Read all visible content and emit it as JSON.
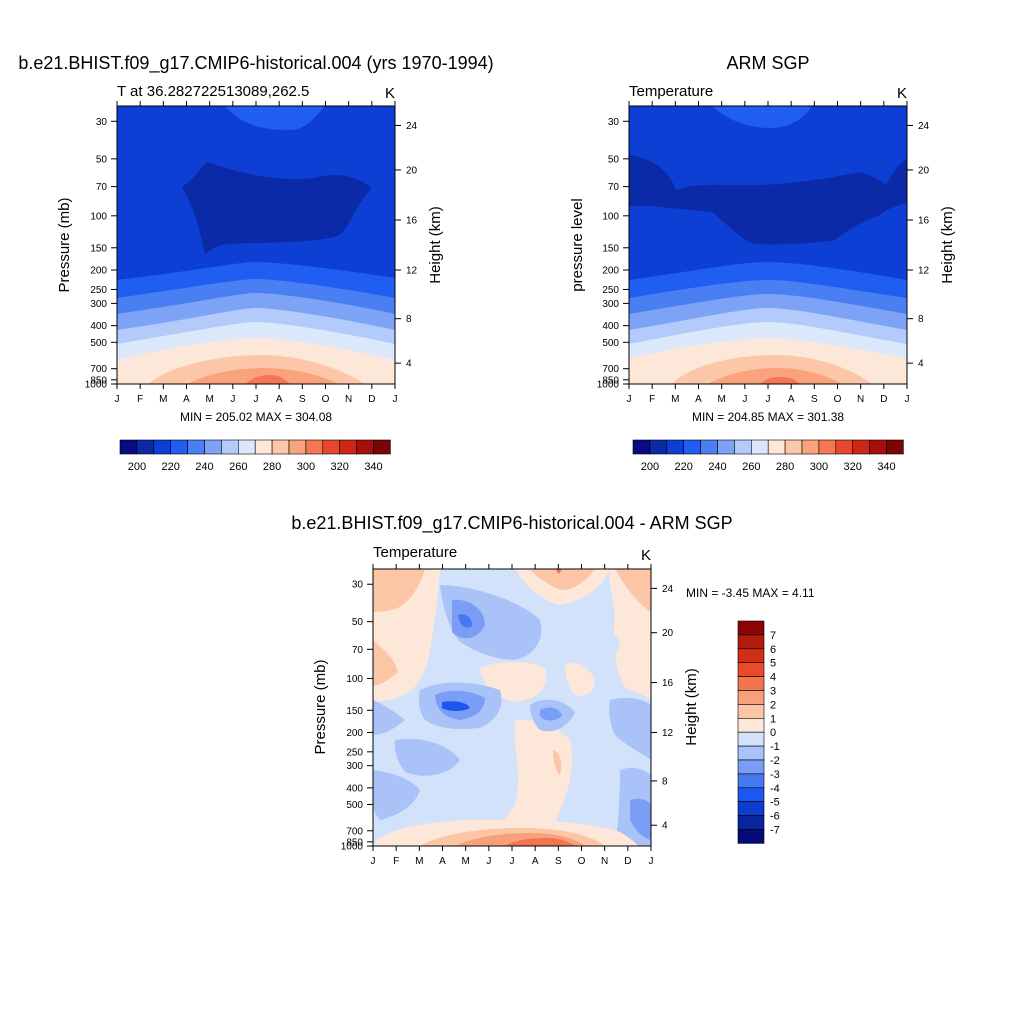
{
  "palette": {
    "temp": [
      "#0b0a80",
      "#0a2aa8",
      "#0e3fd4",
      "#1f5ef0",
      "#4a7ff4",
      "#7da3f7",
      "#b2cbfa",
      "#dbe8fc",
      "#fde7d8",
      "#fcc7a8",
      "#f9a27c",
      "#f47652",
      "#e8472c",
      "#cc2617",
      "#a70f0c",
      "#7d0404"
    ],
    "diff": [
      "#040a78",
      "#0a24a0",
      "#0c3cd0",
      "#1d58ee",
      "#4678f2",
      "#7a9ef6",
      "#a9c2f8",
      "#d3e2fb",
      "#fde7d8",
      "#fcc6a6",
      "#f8a07a",
      "#f27550",
      "#e84a2c",
      "#d12e18",
      "#b21a0c",
      "#8a0404"
    ]
  },
  "months": [
    "J",
    "F",
    "M",
    "A",
    "M",
    "J",
    "J",
    "A",
    "S",
    "O",
    "N",
    "D",
    "J"
  ],
  "pressure_ticks": [
    "30",
    "50",
    "70",
    "100",
    "150",
    "200",
    "250",
    "300",
    "400",
    "500",
    "700",
    "850",
    "1000"
  ],
  "height_ticks": [
    "24",
    "20",
    "16",
    "12",
    "8",
    "4"
  ],
  "panels": {
    "model": {
      "title": "b.e21.BHIST.f09_g17.CMIP6-historical.004 (yrs 1970-1994)",
      "subtitle": "T at 36.282722513089,262.5",
      "units": "K",
      "ylabel_left": "Pressure (mb)",
      "ylabel_right": "Height (km)",
      "minmax": "MIN = 205.02 MAX = 304.08",
      "colorbar_labels": [
        "200",
        "220",
        "240",
        "260",
        "280",
        "300",
        "320",
        "340"
      ]
    },
    "obs": {
      "title": "ARM SGP",
      "subtitle": "Temperature",
      "units": "K",
      "ylabel_left": "pressure level",
      "ylabel_right": "Height (km)",
      "minmax": "MIN = 204.85 MAX = 301.38",
      "colorbar_labels": [
        "200",
        "220",
        "240",
        "260",
        "280",
        "300",
        "320",
        "340"
      ]
    },
    "diff": {
      "title": "b.e21.BHIST.f09_g17.CMIP6-historical.004 - ARM SGP",
      "subtitle": "Temperature",
      "units": "K",
      "ylabel_left": "Pressure (mb)",
      "ylabel_right": "Height (km)",
      "minmax": "MIN =  -3.45 MAX =   4.11",
      "colorbar_labels": [
        "7",
        "6",
        "5",
        "4",
        "3",
        "2",
        "1",
        "0",
        "-1",
        "-2",
        "-3",
        "-4",
        "-5",
        "-6",
        "-7"
      ]
    }
  },
  "chart_data": [
    {
      "type": "heatmap",
      "title": "b.e21.BHIST.f09_g17.CMIP6-historical.004 (yrs 1970-1994)",
      "subtitle": "T at 36.282722513089,262.5",
      "xlabel": "",
      "ylabel": "Pressure (mb)",
      "units": "K",
      "x": [
        "J",
        "F",
        "M",
        "A",
        "M",
        "J",
        "J",
        "A",
        "S",
        "O",
        "N",
        "D",
        "J"
      ],
      "y_pressure_mb": [
        30,
        50,
        70,
        100,
        150,
        200,
        250,
        300,
        400,
        500,
        700,
        850,
        1000
      ],
      "y_height_km": [
        24,
        20,
        16,
        12,
        8,
        4
      ],
      "color_levels": [
        195,
        200,
        205,
        210,
        215,
        220,
        230,
        240,
        250,
        260,
        270,
        280,
        290,
        300,
        310,
        320,
        330,
        340
      ],
      "min": 205.02,
      "max": 304.08
    },
    {
      "type": "heatmap",
      "title": "ARM SGP",
      "subtitle": "Temperature",
      "xlabel": "",
      "ylabel": "pressure level",
      "units": "K",
      "x": [
        "J",
        "F",
        "M",
        "A",
        "M",
        "J",
        "J",
        "A",
        "S",
        "O",
        "N",
        "D",
        "J"
      ],
      "y_pressure_mb": [
        30,
        50,
        70,
        100,
        150,
        200,
        250,
        300,
        400,
        500,
        700,
        850,
        1000
      ],
      "y_height_km": [
        24,
        20,
        16,
        12,
        8,
        4
      ],
      "min": 204.85,
      "max": 301.38
    },
    {
      "type": "heatmap",
      "title": "b.e21.BHIST.f09_g17.CMIP6-historical.004 - ARM SGP",
      "subtitle": "Temperature",
      "xlabel": "",
      "ylabel": "Pressure (mb)",
      "units": "K",
      "x": [
        "J",
        "F",
        "M",
        "A",
        "M",
        "J",
        "J",
        "A",
        "S",
        "O",
        "N",
        "D",
        "J"
      ],
      "y_pressure_mb": [
        30,
        50,
        70,
        100,
        150,
        200,
        250,
        300,
        400,
        500,
        700,
        850,
        1000
      ],
      "y_height_km": [
        24,
        20,
        16,
        12,
        8,
        4
      ],
      "color_levels": [
        -7,
        -6,
        -5,
        -4,
        -3,
        -2,
        -1,
        0,
        1,
        2,
        3,
        4,
        5,
        6,
        7
      ],
      "min": -3.45,
      "max": 4.11
    }
  ]
}
